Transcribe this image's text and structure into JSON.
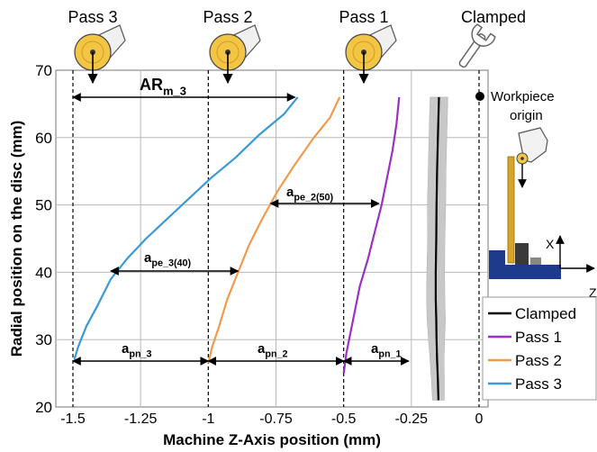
{
  "chart_data": {
    "type": "line",
    "xlabel": "Machine Z-Axis position (mm)",
    "ylabel": "Radial position on the disc (mm)",
    "xlim": [
      -1.5,
      0.05
    ],
    "ylim": [
      20,
      70
    ],
    "x_ticks": [
      "-1.5",
      "-1.25",
      "-1",
      "-0.75",
      "-0.5",
      "-0.25",
      "0"
    ],
    "y_ticks": [
      "20",
      "30",
      "40",
      "50",
      "60",
      "70"
    ],
    "grid": true,
    "legend": "bottom-right",
    "tool_labels": [
      "Pass 3",
      "Pass 2",
      "Pass 1",
      "Clamped"
    ],
    "workpiece_label": "Workpiece origin",
    "axis_letters": {
      "x": "X",
      "z": "Z"
    },
    "annotations": {
      "ar_m_3": {
        "main": "AR",
        "sub": "m_3"
      },
      "a_pe_2_50": {
        "main": "a",
        "sub": "pe_2(50)"
      },
      "a_pe_3_40": {
        "main": "a",
        "sub": "pe_3(40)"
      },
      "a_pn_3": {
        "main": "a",
        "sub": "pn_3"
      },
      "a_pn_2": {
        "main": "a",
        "sub": "pn_2"
      },
      "a_pn_1": {
        "main": "a",
        "sub": "pn_1"
      }
    },
    "series": [
      {
        "name": "Clamped",
        "color": "#000000",
        "points": [
          [
            -0.15,
            21
          ],
          [
            -0.152,
            24
          ],
          [
            -0.155,
            27
          ],
          [
            -0.157,
            30
          ],
          [
            -0.158,
            33
          ],
          [
            -0.16,
            36
          ],
          [
            -0.16,
            40
          ],
          [
            -0.158,
            45
          ],
          [
            -0.157,
            50
          ],
          [
            -0.155,
            55
          ],
          [
            -0.152,
            60
          ],
          [
            -0.15,
            63
          ],
          [
            -0.148,
            66
          ]
        ],
        "band": [
          0.022,
          0.024,
          0.026,
          0.03,
          0.034,
          0.034,
          0.033,
          0.032,
          0.034,
          0.033,
          0.033,
          0.033,
          0.033
        ]
      },
      {
        "name": "Pass 1",
        "color": "#9b30c6",
        "points": [
          [
            -0.5,
            25
          ],
          [
            -0.49,
            28
          ],
          [
            -0.475,
            31
          ],
          [
            -0.46,
            34
          ],
          [
            -0.44,
            38
          ],
          [
            -0.41,
            42
          ],
          [
            -0.385,
            46
          ],
          [
            -0.36,
            50
          ],
          [
            -0.34,
            54
          ],
          [
            -0.32,
            58
          ],
          [
            -0.305,
            62
          ],
          [
            -0.295,
            66
          ]
        ]
      },
      {
        "name": "Pass 2",
        "color": "#f29a4b",
        "points": [
          [
            -1,
            26.5
          ],
          [
            -0.985,
            29
          ],
          [
            -0.96,
            32
          ],
          [
            -0.93,
            36
          ],
          [
            -0.89,
            40
          ],
          [
            -0.85,
            44
          ],
          [
            -0.8,
            48
          ],
          [
            -0.745,
            52
          ],
          [
            -0.68,
            56
          ],
          [
            -0.61,
            60
          ],
          [
            -0.55,
            63
          ],
          [
            -0.515,
            66
          ]
        ]
      },
      {
        "name": "Pass 3",
        "color": "#3a9ad4",
        "points": [
          [
            -1.495,
            27
          ],
          [
            -1.48,
            29
          ],
          [
            -1.45,
            32
          ],
          [
            -1.41,
            35
          ],
          [
            -1.36,
            39
          ],
          [
            -1.3,
            42
          ],
          [
            -1.23,
            45
          ],
          [
            -1.15,
            48
          ],
          [
            -1.07,
            51
          ],
          [
            -0.99,
            54
          ],
          [
            -0.9,
            57
          ],
          [
            -0.81,
            60.5
          ],
          [
            -0.72,
            63.5
          ],
          [
            -0.67,
            66
          ]
        ]
      }
    ]
  }
}
